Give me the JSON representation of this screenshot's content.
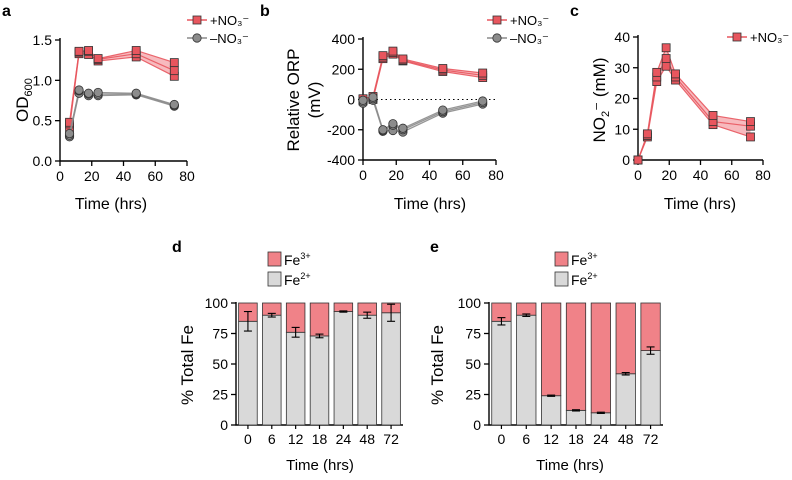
{
  "panels": {
    "a": {
      "label": "a",
      "ylabel": "OD600",
      "xlabel": "Time (hrs)"
    },
    "b": {
      "label": "b",
      "ylabel_line1": "Relative ORP",
      "ylabel_line2": "(mV)",
      "xlabel": "Time (hrs)"
    },
    "c": {
      "label": "c",
      "ylabel": "NO2⁻ (mM)",
      "xlabel": "Time (hrs)"
    },
    "d": {
      "label": "d",
      "ylabel": "% Total Fe",
      "xlabel": "Time (hrs)"
    },
    "e": {
      "label": "e",
      "ylabel": "% Total Fe",
      "xlabel": "Time (hrs)"
    }
  },
  "colors": {
    "nitrate": "#e8565e",
    "nitrate_fill": "#f08288",
    "control": "#8c8c8c",
    "fe3": "#f08288",
    "fe2": "#d9d9d9"
  },
  "legend": {
    "plus": "+NO₃⁻",
    "minus": "–NO₃⁻",
    "fe3": "Fe",
    "fe3_sup": "3+",
    "fe2": "Fe",
    "fe2_sup": "2+"
  },
  "chart_data": [
    {
      "id": "a",
      "type": "line",
      "ylabel": "OD600",
      "xlabel": "Time (hrs)",
      "xlim": [
        0,
        80
      ],
      "ylim": [
        0,
        1.5
      ],
      "xticks": [
        0,
        20,
        40,
        60,
        80
      ],
      "yticks": [
        0.0,
        0.5,
        1.0,
        1.5
      ],
      "ytick_labels": [
        "0.0",
        "0.5",
        "1.0",
        "1.5"
      ],
      "legend_position": "top-right",
      "series": [
        {
          "name": "+NO₃⁻",
          "x": [
            6,
            12,
            18,
            24,
            48,
            72
          ],
          "replicates": [
            [
              0.41,
              1.33,
              1.32,
              1.24,
              1.29,
              1.05
            ],
            [
              0.46,
              1.35,
              1.36,
              1.26,
              1.33,
              1.12
            ],
            [
              0.48,
              1.36,
              1.37,
              1.27,
              1.37,
              1.22
            ]
          ]
        },
        {
          "name": "–NO₃⁻",
          "x": [
            6,
            12,
            18,
            24,
            48,
            72
          ],
          "replicates": [
            [
              0.3,
              0.84,
              0.81,
              0.81,
              0.82,
              0.68
            ],
            [
              0.32,
              0.87,
              0.83,
              0.83,
              0.83,
              0.69
            ],
            [
              0.34,
              0.88,
              0.84,
              0.85,
              0.84,
              0.7
            ]
          ]
        }
      ]
    },
    {
      "id": "b",
      "type": "line",
      "ylabel": "Relative ORP (mV)",
      "xlabel": "Time (hrs)",
      "xlim": [
        0,
        80
      ],
      "ylim": [
        -400,
        400
      ],
      "xticks": [
        0,
        20,
        40,
        60,
        80
      ],
      "yticks": [
        -400,
        -200,
        0,
        200,
        400
      ],
      "ytick_labels": [
        "-400",
        "-200",
        "0",
        "200",
        "400"
      ],
      "reference_line": 0,
      "legend_position": "top-right",
      "series": [
        {
          "name": "+NO₃⁻",
          "x": [
            0,
            6,
            12,
            18,
            24,
            48,
            72
          ],
          "replicates": [
            [
              -10,
              0,
              270,
              300,
              255,
              185,
              145
            ],
            [
              0,
              10,
              280,
              310,
              260,
              195,
              160
            ],
            [
              5,
              20,
              290,
              320,
              268,
              205,
              175
            ]
          ]
        },
        {
          "name": "–NO₃⁻",
          "x": [
            0,
            6,
            12,
            18,
            24,
            48,
            72
          ],
          "replicates": [
            [
              -25,
              -5,
              -210,
              -205,
              -215,
              -90,
              -30
            ],
            [
              -15,
              5,
              -205,
              -170,
              -200,
              -80,
              -20
            ],
            [
              -5,
              15,
              -200,
              -160,
              -190,
              -70,
              -10
            ]
          ]
        }
      ]
    },
    {
      "id": "c",
      "type": "line",
      "ylabel": "NO2⁻ (mM)",
      "xlabel": "Time (hrs)",
      "xlim": [
        0,
        80
      ],
      "ylim": [
        0,
        40
      ],
      "xticks": [
        0,
        20,
        40,
        60,
        80
      ],
      "yticks": [
        0,
        10,
        20,
        30,
        40
      ],
      "ytick_labels": [
        "0",
        "10",
        "20",
        "30",
        "40"
      ],
      "legend_position": "top-right",
      "series": [
        {
          "name": "+NO₃⁻",
          "x": [
            0,
            6,
            12,
            18,
            24,
            48,
            72
          ],
          "replicates": [
            [
              0,
              7.5,
              25.5,
              30.5,
              26,
              11.5,
              7.5
            ],
            [
              0,
              8,
              27,
              33,
              27,
              12.5,
              11
            ],
            [
              0,
              8.5,
              28.5,
              36.5,
              28,
              14.5,
              12.5
            ]
          ]
        }
      ]
    },
    {
      "id": "d",
      "type": "bar",
      "stacked": true,
      "ylabel": "% Total Fe",
      "xlabel": "Time (hrs)",
      "categories": [
        "0",
        "6",
        "12",
        "18",
        "24",
        "48",
        "72"
      ],
      "ylim": [
        0,
        100
      ],
      "yticks": [
        0,
        25,
        50,
        75,
        100
      ],
      "legend_position": "top",
      "series": [
        {
          "name": "Fe2+",
          "values": [
            85,
            90,
            76,
            73,
            93,
            90,
            92
          ],
          "errors": [
            8,
            1.5,
            4,
            1.5,
            0.5,
            2.5,
            7
          ]
        },
        {
          "name": "Fe3+",
          "values": [
            15,
            10,
            24,
            27,
            7,
            10,
            8
          ]
        }
      ]
    },
    {
      "id": "e",
      "type": "bar",
      "stacked": true,
      "ylabel": "% Total Fe",
      "xlabel": "Time (hrs)",
      "categories": [
        "0",
        "6",
        "12",
        "18",
        "24",
        "48",
        "72"
      ],
      "ylim": [
        0,
        100
      ],
      "yticks": [
        0,
        25,
        50,
        75,
        100
      ],
      "legend_position": "top",
      "series": [
        {
          "name": "Fe2+",
          "values": [
            85,
            90,
            24,
            12,
            10,
            42,
            61
          ],
          "errors": [
            3,
            1,
            0.5,
            0.5,
            0.5,
            1,
            3
          ]
        },
        {
          "name": "Fe3+",
          "values": [
            15,
            10,
            76,
            88,
            90,
            58,
            39
          ]
        }
      ]
    }
  ]
}
